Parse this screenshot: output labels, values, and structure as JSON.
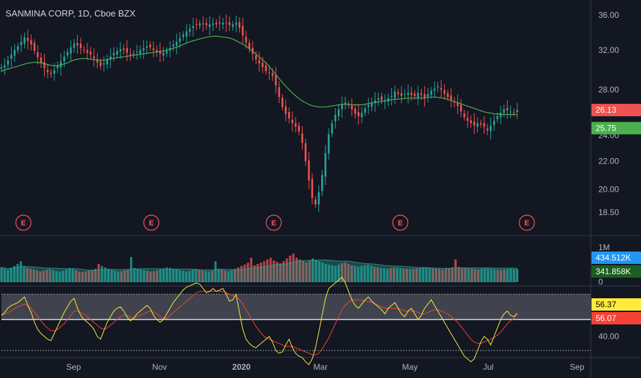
{
  "header": {
    "title": "SANMINA CORP, 1D, Cboe BZX"
  },
  "colors": {
    "background": "#131722",
    "up": "#26a69a",
    "down": "#ef5350",
    "ma": "#4caf50",
    "vol_ma": "#26a69a",
    "rsi": "#ffeb3b",
    "rsi_ma": "#f44336",
    "earnings": "#f7525f",
    "axis_text": "#b2b5be"
  },
  "chart_data": [
    {
      "type": "candlestick",
      "name": "price",
      "title": "SANMINA CORP, 1D, Cboe BZX",
      "x_ticks": [
        "Sep",
        "Nov",
        "2020",
        "Mar",
        "May",
        "Jul",
        "Sep"
      ],
      "y_ticks": [
        "36.00",
        "32.00",
        "28.00",
        "24.00",
        "22.00",
        "20.00",
        "18.50"
      ],
      "scale": "log",
      "ylim": [
        17.5,
        37.0
      ],
      "closes": [
        30.2,
        30.4,
        30.9,
        31.5,
        32.0,
        32.4,
        32.9,
        33.4,
        33.0,
        32.6,
        31.9,
        31.2,
        30.6,
        30.1,
        29.7,
        29.5,
        29.9,
        30.3,
        30.8,
        31.3,
        31.8,
        32.3,
        32.7,
        32.5,
        32.2,
        32.0,
        31.7,
        31.5,
        31.1,
        30.7,
        30.3,
        30.6,
        31.0,
        31.3,
        31.7,
        31.9,
        32.1,
        32.0,
        31.7,
        31.5,
        31.6,
        31.8,
        32.0,
        32.2,
        32.4,
        32.3,
        32.0,
        31.8,
        31.6,
        31.7,
        31.9,
        32.2,
        32.6,
        32.9,
        33.3,
        33.7,
        34.1,
        34.4,
        34.7,
        34.9,
        35.0,
        34.9,
        34.8,
        34.9,
        35.0,
        34.9,
        35.0,
        35.1,
        35.0,
        34.8,
        34.9,
        35.1,
        34.5,
        33.6,
        32.8,
        32.1,
        31.6,
        31.0,
        30.6,
        30.2,
        29.8,
        29.6,
        29.3,
        28.4,
        27.3,
        26.4,
        25.8,
        25.4,
        25.0,
        24.7,
        24.3,
        23.4,
        22.0,
        20.6,
        19.4,
        19.0,
        19.8,
        21.0,
        22.6,
        24.1,
        25.0,
        25.7,
        26.2,
        26.6,
        26.8,
        26.6,
        26.2,
        25.8,
        25.6,
        25.9,
        26.3,
        26.6,
        26.8,
        27.0,
        27.2,
        27.0,
        26.9,
        27.2,
        27.4,
        27.8,
        27.6,
        27.4,
        27.6,
        27.7,
        27.5,
        27.4,
        27.7,
        27.5,
        27.2,
        27.6,
        27.9,
        28.1,
        28.3,
        28.0,
        27.6,
        27.3,
        27.0,
        26.8,
        26.5,
        26.0,
        25.5,
        25.2,
        25.0,
        24.8,
        25.0,
        24.9,
        24.7,
        24.4,
        24.8,
        25.2,
        25.6,
        25.9,
        26.2,
        26.1,
        26.0,
        25.9,
        26.13
      ],
      "sma": [
        29.8,
        29.9,
        30.0,
        30.1,
        30.2,
        30.3,
        30.4,
        30.5,
        30.6,
        30.65,
        30.7,
        30.7,
        30.65,
        30.6,
        30.5,
        30.4,
        30.35,
        30.35,
        30.4,
        30.5,
        30.6,
        30.75,
        30.9,
        31.0,
        31.05,
        31.1,
        31.1,
        31.05,
        31.0,
        30.95,
        30.9,
        30.9,
        30.95,
        31.0,
        31.1,
        31.15,
        31.2,
        31.25,
        31.3,
        31.35,
        31.4,
        31.45,
        31.5,
        31.55,
        31.6,
        31.65,
        31.7,
        31.75,
        31.8,
        31.85,
        31.9,
        32.0,
        32.1,
        32.2,
        32.3,
        32.45,
        32.6,
        32.75,
        32.9,
        33.0,
        33.1,
        33.2,
        33.3,
        33.4,
        33.45,
        33.5,
        33.55,
        33.5,
        33.45,
        33.4,
        33.35,
        33.25,
        33.1,
        32.9,
        32.7,
        32.5,
        32.3,
        32.0,
        31.7,
        31.4,
        31.1,
        30.8,
        30.5,
        30.1,
        29.7,
        29.3,
        28.9,
        28.55,
        28.2,
        27.9,
        27.6,
        27.35,
        27.1,
        26.9,
        26.75,
        26.6,
        26.5,
        26.45,
        26.4,
        26.4,
        26.4,
        26.45,
        26.5,
        26.55,
        26.6,
        26.65,
        26.65,
        26.65,
        26.6,
        26.6,
        26.6,
        26.6,
        26.65,
        26.7,
        26.75,
        26.8,
        26.85,
        26.9,
        26.95,
        27.0,
        27.05,
        27.1,
        27.1,
        27.15,
        27.15,
        27.2,
        27.2,
        27.2,
        27.2,
        27.2,
        27.2,
        27.25,
        27.3,
        27.3,
        27.3,
        27.25,
        27.2,
        27.15,
        27.05,
        26.95,
        26.85,
        26.75,
        26.65,
        26.55,
        26.45,
        26.35,
        26.25,
        26.15,
        26.05,
        25.95,
        25.9,
        25.85,
        25.8,
        25.78,
        25.76,
        25.75,
        25.75,
        25.75,
        25.75,
        25.75
      ],
      "last_price_label": "26.13",
      "sma_label": "25.75",
      "earnings_markers": [
        "E",
        "E",
        "E",
        "E",
        "E"
      ]
    },
    {
      "type": "bar",
      "name": "volume",
      "y_ticks": [
        "1M",
        "0"
      ],
      "ylim": [
        0,
        1300000
      ],
      "values": [
        420000,
        380000,
        350000,
        410000,
        460000,
        520000,
        600000,
        450000,
        400000,
        380000,
        360000,
        330000,
        300000,
        320000,
        350000,
        370000,
        340000,
        310000,
        300000,
        320000,
        360000,
        400000,
        380000,
        340000,
        300000,
        280000,
        300000,
        330000,
        350000,
        380000,
        520000,
        460000,
        420000,
        380000,
        350000,
        330000,
        300000,
        310000,
        330000,
        350000,
        720000,
        400000,
        380000,
        360000,
        340000,
        320000,
        300000,
        310000,
        330000,
        360000,
        390000,
        420000,
        400000,
        380000,
        360000,
        340000,
        320000,
        300000,
        320000,
        350000,
        380000,
        360000,
        330000,
        310000,
        300000,
        320000,
        600000,
        380000,
        350000,
        330000,
        310000,
        340000,
        380000,
        420000,
        460000,
        500000,
        550000,
        700000,
        480000,
        520000,
        560000,
        600000,
        650000,
        700000,
        620000,
        580000,
        540000,
        600000,
        680000,
        760000,
        820000,
        700000,
        650000,
        600000,
        560000,
        620000,
        680000,
        640000,
        600000,
        560000,
        520000,
        500000,
        480000,
        460000,
        500000,
        540000,
        560000,
        520000,
        480000,
        460000,
        440000,
        460000,
        480000,
        500000,
        470000,
        440000,
        420000,
        400000,
        390000,
        380000,
        400000,
        420000,
        410000,
        400000,
        390000,
        380000,
        370000,
        380000,
        390000,
        400000,
        420000,
        410000,
        400000,
        390000,
        380000,
        370000,
        360000,
        380000,
        400000,
        420000,
        650000,
        430000,
        410000,
        400000,
        390000,
        380000,
        370000,
        360000,
        380000,
        400000,
        390000,
        380000,
        370000,
        360000,
        350000,
        360000,
        370000,
        380000,
        370000,
        360000
      ],
      "vol_ma_label": "434.512K",
      "vol_label": "341.858K"
    },
    {
      "type": "line",
      "name": "rsi",
      "y_ticks": [
        "40.00"
      ],
      "ylim": [
        20,
        90
      ],
      "band": [
        30,
        70
      ],
      "series": [
        {
          "values": [
            55,
            57,
            60,
            62,
            63,
            64,
            66,
            68,
            62,
            57,
            50,
            45,
            42,
            40,
            38,
            37,
            42,
            47,
            52,
            57,
            61,
            65,
            67,
            60,
            55,
            52,
            50,
            48,
            45,
            40,
            38,
            44,
            50,
            54,
            58,
            60,
            61,
            58,
            54,
            51,
            53,
            56,
            58,
            60,
            62,
            60,
            55,
            52,
            50,
            52,
            56,
            60,
            64,
            67,
            70,
            73,
            75,
            76,
            77,
            78,
            77,
            74,
            71,
            72,
            74,
            72,
            73,
            74,
            70,
            65,
            66,
            70,
            57,
            45,
            38,
            35,
            33,
            32,
            34,
            36,
            38,
            40,
            36,
            30,
            28,
            29,
            34,
            38,
            32,
            28,
            26,
            25,
            22,
            20,
            24,
            32,
            43,
            55,
            67,
            74,
            76,
            78,
            80,
            82,
            78,
            72,
            66,
            62,
            60,
            63,
            66,
            68,
            65,
            63,
            61,
            59,
            56,
            60,
            62,
            64,
            60,
            56,
            54,
            58,
            60,
            56,
            52,
            55,
            60,
            63,
            66,
            62,
            58,
            54,
            50,
            46,
            42,
            38,
            34,
            30,
            26,
            24,
            22,
            24,
            30,
            36,
            40,
            38,
            34,
            40,
            46,
            52,
            56,
            58,
            55,
            54,
            56.37
          ]
        },
        {
          "values": [
            55,
            56,
            57,
            58,
            60,
            61,
            62,
            63,
            62,
            60,
            57,
            54,
            51,
            48,
            46,
            44,
            44,
            45,
            47,
            49,
            52,
            55,
            58,
            58,
            57,
            56,
            54,
            52,
            50,
            48,
            46,
            45,
            46,
            48,
            50,
            52,
            54,
            55,
            55,
            54,
            53,
            54,
            55,
            56,
            57,
            58,
            57,
            56,
            54,
            53,
            53,
            55,
            57,
            59,
            61,
            63,
            65,
            67,
            69,
            71,
            72,
            72,
            72,
            72,
            72,
            72,
            72,
            72,
            71,
            70,
            69,
            68,
            66,
            63,
            59,
            55,
            51,
            47,
            44,
            41,
            39,
            38,
            37,
            36,
            35,
            34,
            33,
            33,
            33,
            32,
            31,
            30,
            29,
            28,
            27,
            27,
            28,
            31,
            35,
            39,
            44,
            49,
            54,
            59,
            62,
            64,
            66,
            66,
            66,
            66,
            65,
            65,
            64,
            63,
            62,
            61,
            60,
            60,
            60,
            60,
            60,
            59,
            58,
            58,
            58,
            58,
            57,
            56,
            56,
            57,
            58,
            59,
            59,
            58,
            57,
            56,
            54,
            52,
            50,
            47,
            44,
            41,
            38,
            36,
            35,
            35,
            36,
            37,
            38,
            39,
            41,
            43,
            46,
            49,
            51,
            53,
            56.07
          ]
        }
      ],
      "rsi_label": "56.37",
      "rsi_ma_label": "56.07"
    }
  ]
}
